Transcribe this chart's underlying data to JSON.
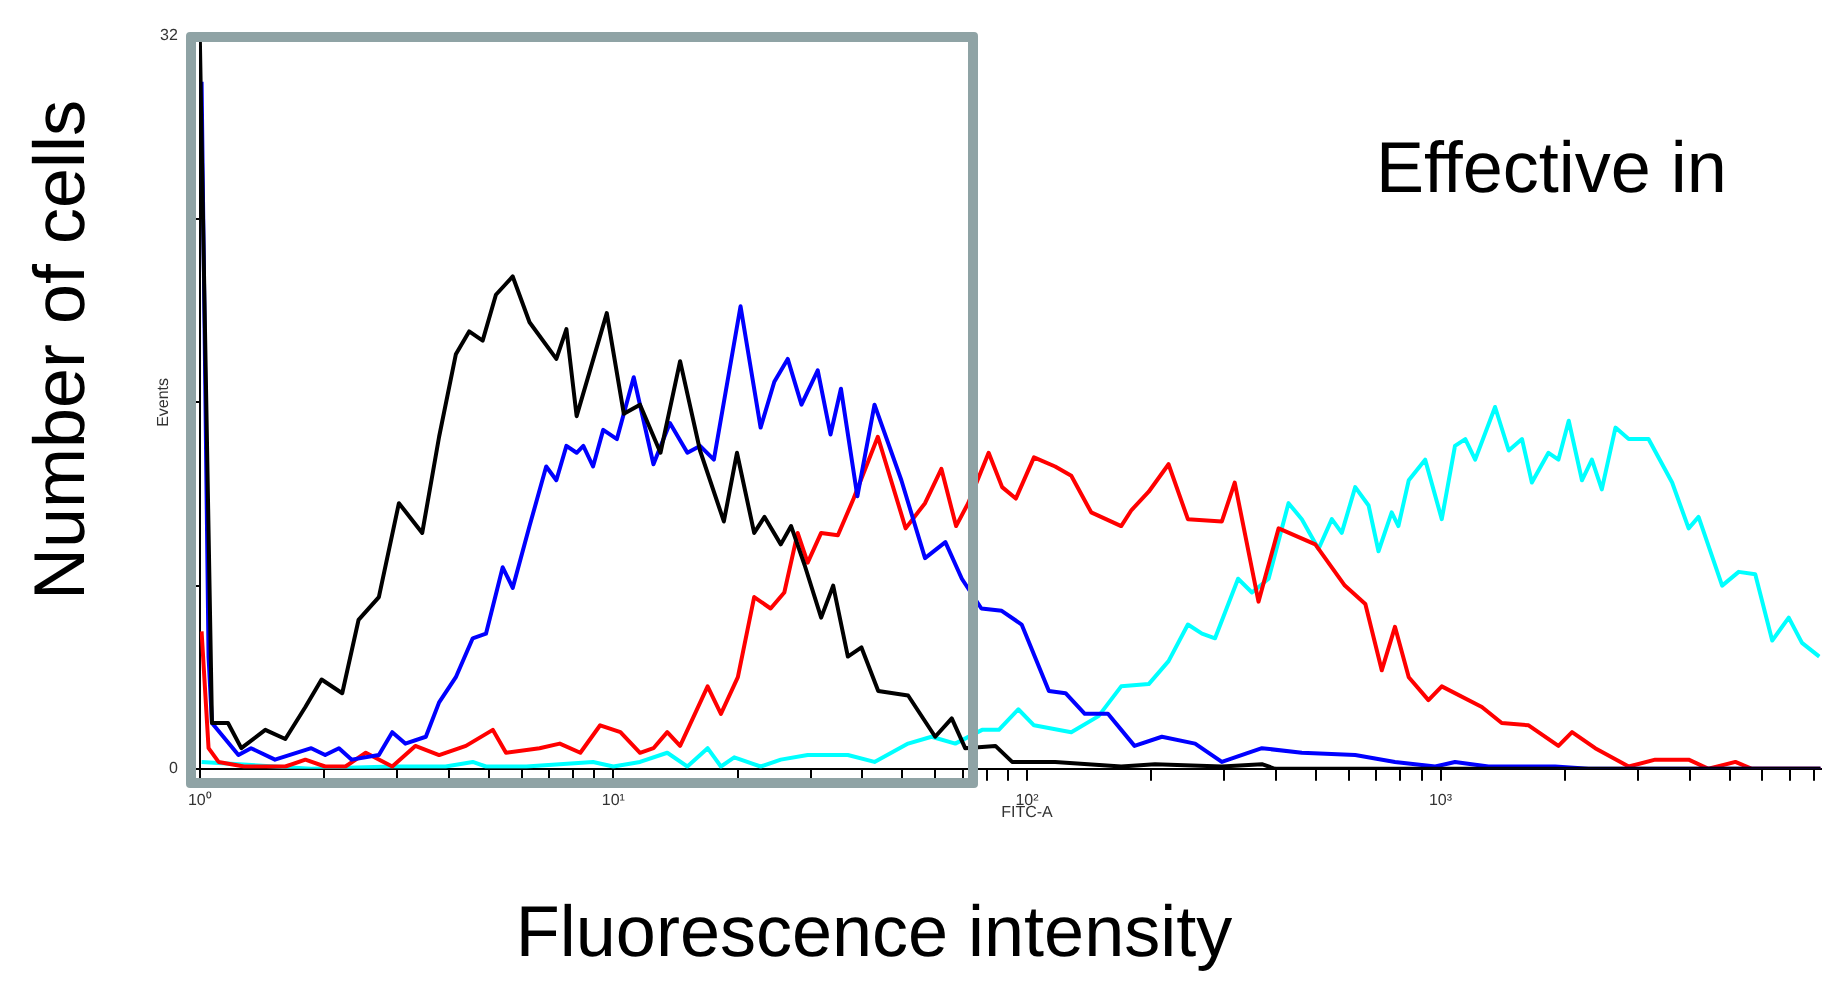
{
  "chart_data": {
    "type": "line",
    "title": "Effective in",
    "xlabel": "Fluorescence intensity",
    "ylabel": "Number of cells",
    "annotations": [
      "Events",
      "FITC-A"
    ],
    "log": "x",
    "grid": false,
    "legend": false,
    "marker": "none",
    "xlim": [
      1,
      8300
    ],
    "ylim": [
      0,
      32
    ],
    "xticks": [
      {
        "value": 1,
        "label": "10⁰"
      },
      {
        "value": 2,
        "label": null
      },
      {
        "value": 3,
        "label": null
      },
      {
        "value": 4,
        "label": null
      },
      {
        "value": 5,
        "label": null
      },
      {
        "value": 6,
        "label": null
      },
      {
        "value": 7,
        "label": null
      },
      {
        "value": 8,
        "label": null
      },
      {
        "value": 9,
        "label": null
      },
      {
        "value": 10,
        "label": "10¹"
      },
      {
        "value": 20,
        "label": null
      },
      {
        "value": 30,
        "label": null
      },
      {
        "value": 40,
        "label": null
      },
      {
        "value": 50,
        "label": null
      },
      {
        "value": 60,
        "label": null
      },
      {
        "value": 70,
        "label": null
      },
      {
        "value": 80,
        "label": null
      },
      {
        "value": 90,
        "label": null
      },
      {
        "value": 100,
        "label": "10²"
      },
      {
        "value": 200,
        "label": null
      },
      {
        "value": 300,
        "label": null
      },
      {
        "value": 400,
        "label": null
      },
      {
        "value": 500,
        "label": null
      },
      {
        "value": 600,
        "label": null
      },
      {
        "value": 700,
        "label": null
      },
      {
        "value": 800,
        "label": null
      },
      {
        "value": 900,
        "label": null
      },
      {
        "value": 1000,
        "label": "10³"
      },
      {
        "value": 2000,
        "label": null
      },
      {
        "value": 3000,
        "label": null
      },
      {
        "value": 4000,
        "label": null
      },
      {
        "value": 5000,
        "label": null
      },
      {
        "value": 6000,
        "label": null
      },
      {
        "value": 7000,
        "label": null
      },
      {
        "value": 8000,
        "label": null
      }
    ],
    "yticks": [
      0,
      {
        "value": 8,
        "label": null
      },
      {
        "value": 16,
        "label": null
      },
      {
        "value": 24,
        "label": null
      },
      32
    ],
    "series": [
      {
        "color": "#000000",
        "x": [
          1,
          1.07,
          1.17,
          1.26,
          1.44,
          1.61,
          1.8,
          1.97,
          2.21,
          2.42,
          2.71,
          3.03,
          3.45,
          3.79,
          4.16,
          4.48,
          4.83,
          5.2,
          5.71,
          6.27,
          7.28,
          7.7,
          8.15,
          9.64,
          10.6,
          11.6,
          13,
          14.5,
          16.2,
          18.5,
          19.9,
          21.9,
          23.2,
          25.4,
          26.9,
          29,
          31.8,
          34,
          36.9,
          39.8,
          43.7,
          51.6,
          60,
          65.8,
          70.9,
          83.9,
          92.1,
          117,
          169,
          204,
          296,
          370,
          398,
          8300
        ],
        "values": [
          32,
          2,
          2,
          0.9,
          1.7,
          1.3,
          2.7,
          3.9,
          3.3,
          6.5,
          7.5,
          11.6,
          10.3,
          14.5,
          18.1,
          19.1,
          18.7,
          20.7,
          21.5,
          19.5,
          17.9,
          19.2,
          15.4,
          19.9,
          15.5,
          15.9,
          13.8,
          17.8,
          13.9,
          10.8,
          13.8,
          10.3,
          11,
          9.8,
          10.6,
          8.9,
          6.6,
          8,
          4.9,
          5.3,
          3.4,
          3.2,
          1.4,
          2.2,
          0.9,
          1,
          0.3,
          0.3,
          0.1,
          0.2,
          0.1,
          0.2,
          0,
          0
        ]
      },
      {
        "color": "#0000ff",
        "x": [
          1.01,
          1.05,
          1.07,
          1.24,
          1.33,
          1.52,
          1.86,
          2.01,
          2.17,
          2.33,
          2.71,
          2.92,
          3.14,
          3.52,
          3.79,
          4.16,
          4.57,
          4.92,
          5.4,
          5.71,
          6.27,
          6.88,
          7.28,
          7.7,
          8.15,
          8.46,
          8.93,
          9.45,
          10.2,
          11.2,
          12.5,
          13.7,
          15.1,
          16.2,
          17.5,
          20.3,
          22.7,
          24.5,
          26.4,
          28.5,
          31.2,
          33.5,
          35.5,
          38.9,
          42.8,
          49.7,
          56.7,
          63.5,
          69.6,
          77.6,
          86.9,
          97.1,
          113,
          124,
          138,
          157,
          182,
          212,
          255,
          296,
          370,
          462,
          622,
          776,
          971,
          1084,
          1306,
          1892,
          2280,
          8300
        ],
        "values": [
          30,
          4.9,
          2,
          0.6,
          0.9,
          0.4,
          0.9,
          0.6,
          0.9,
          0.4,
          0.6,
          1.6,
          1.1,
          1.4,
          2.9,
          4,
          5.7,
          5.9,
          8.8,
          7.9,
          10.6,
          13.2,
          12.6,
          14.1,
          13.8,
          14.1,
          13.2,
          14.8,
          14.4,
          17.1,
          13.3,
          15.1,
          13.8,
          14.1,
          13.5,
          20.2,
          14.9,
          16.9,
          17.9,
          15.9,
          17.4,
          14.6,
          16.6,
          11.9,
          15.9,
          12.6,
          9.2,
          9.9,
          8.3,
          7,
          6.9,
          6.3,
          3.4,
          3.3,
          2.4,
          2.4,
          1,
          1.4,
          1.1,
          0.3,
          0.9,
          0.7,
          0.6,
          0.3,
          0.1,
          0.3,
          0.1,
          0.1,
          0,
          0
        ]
      },
      {
        "color": "#ff0000",
        "x": [
          1.01,
          1.05,
          1.11,
          1.28,
          1.61,
          1.8,
          2.01,
          2.25,
          2.52,
          2.92,
          3.32,
          3.79,
          4.4,
          5.11,
          5.5,
          6.63,
          7.42,
          8.32,
          9.29,
          10.4,
          11.6,
          12.5,
          13.5,
          14.5,
          16.9,
          18.2,
          20,
          21.9,
          24,
          25.9,
          27.9,
          29.5,
          31.8,
          34.9,
          38.1,
          43.6,
          50.9,
          56.7,
          62.1,
          67.4,
          72.1,
          80.8,
          87.1,
          94,
          104,
          117,
          128,
          143,
          169,
          179,
          197,
          220,
          245,
          296,
          318,
          363,
          406,
          498,
          587,
          658,
          721,
          776,
          838,
          935,
          1007,
          1259,
          1406,
          1633,
          1928,
          2080,
          2366,
          2851,
          3304,
          3981,
          4446,
          5164,
          5662,
          8300
        ],
        "values": [
          6,
          0.9,
          0.3,
          0.1,
          0.1,
          0.4,
          0.1,
          0.1,
          0.7,
          0.1,
          1,
          0.6,
          1,
          1.7,
          0.7,
          0.9,
          1.1,
          0.7,
          1.9,
          1.6,
          0.7,
          0.9,
          1.6,
          1,
          3.6,
          2.4,
          4,
          7.5,
          7,
          7.7,
          10.3,
          9,
          10.3,
          10.2,
          11.8,
          14.5,
          10.5,
          11.6,
          13.1,
          10.6,
          11.6,
          13.8,
          12.3,
          11.8,
          13.6,
          13.2,
          12.8,
          11.2,
          10.6,
          11.3,
          12.1,
          13.3,
          10.9,
          10.8,
          12.5,
          7.3,
          10.5,
          9.8,
          8,
          7.2,
          4.3,
          6.2,
          4,
          3,
          3.6,
          2.7,
          2,
          1.9,
          1,
          1.6,
          0.9,
          0.1,
          0.4,
          0.4,
          0,
          0.3,
          0,
          0
        ]
      },
      {
        "color": "#00ffff",
        "x": [
          1.01,
          1.86,
          2.92,
          3.93,
          4.57,
          4.92,
          6.16,
          8.93,
          10,
          11.6,
          13.5,
          15.1,
          16.9,
          18.2,
          19.6,
          22.7,
          25.4,
          29.5,
          36.9,
          42.8,
          51.6,
          58.8,
          67.1,
          77.9,
          85.5,
          95.3,
          104,
          128,
          149,
          169,
          197,
          220,
          245,
          265,
          285,
          324,
          350,
          384,
          429,
          462,
          507,
          546,
          577,
          622,
          670,
          708,
          762,
          791,
          838,
          918,
          1007,
          1084,
          1148,
          1213,
          1355,
          1462,
          1574,
          1663,
          1824,
          1928,
          2042,
          2198,
          2323,
          2455,
          2649,
          2851,
          3184,
          3631,
          3981,
          4207,
          4797,
          5260,
          5768,
          6339,
          6950,
          7482,
          8241
        ],
        "values": [
          0.3,
          0,
          0.1,
          0.1,
          0.3,
          0.1,
          0.1,
          0.3,
          0.1,
          0.3,
          0.7,
          0.1,
          0.9,
          0.1,
          0.5,
          0.1,
          0.4,
          0.6,
          0.6,
          0.3,
          1.1,
          1.4,
          1.1,
          1.7,
          1.7,
          2.6,
          1.9,
          1.6,
          2.3,
          3.6,
          3.7,
          4.7,
          6.3,
          5.9,
          5.7,
          8.3,
          7.7,
          8.3,
          11.6,
          10.9,
          9.6,
          10.9,
          10.3,
          12.3,
          11.5,
          9.5,
          11.2,
          10.6,
          12.6,
          13.5,
          10.9,
          14.1,
          14.4,
          13.5,
          15.8,
          13.9,
          14.4,
          12.5,
          13.8,
          13.5,
          15.2,
          12.6,
          13.5,
          12.2,
          14.9,
          14.4,
          14.4,
          12.5,
          10.5,
          11,
          8,
          8.6,
          8.5,
          5.6,
          6.6,
          5.5,
          4.9
        ]
      }
    ]
  }
}
